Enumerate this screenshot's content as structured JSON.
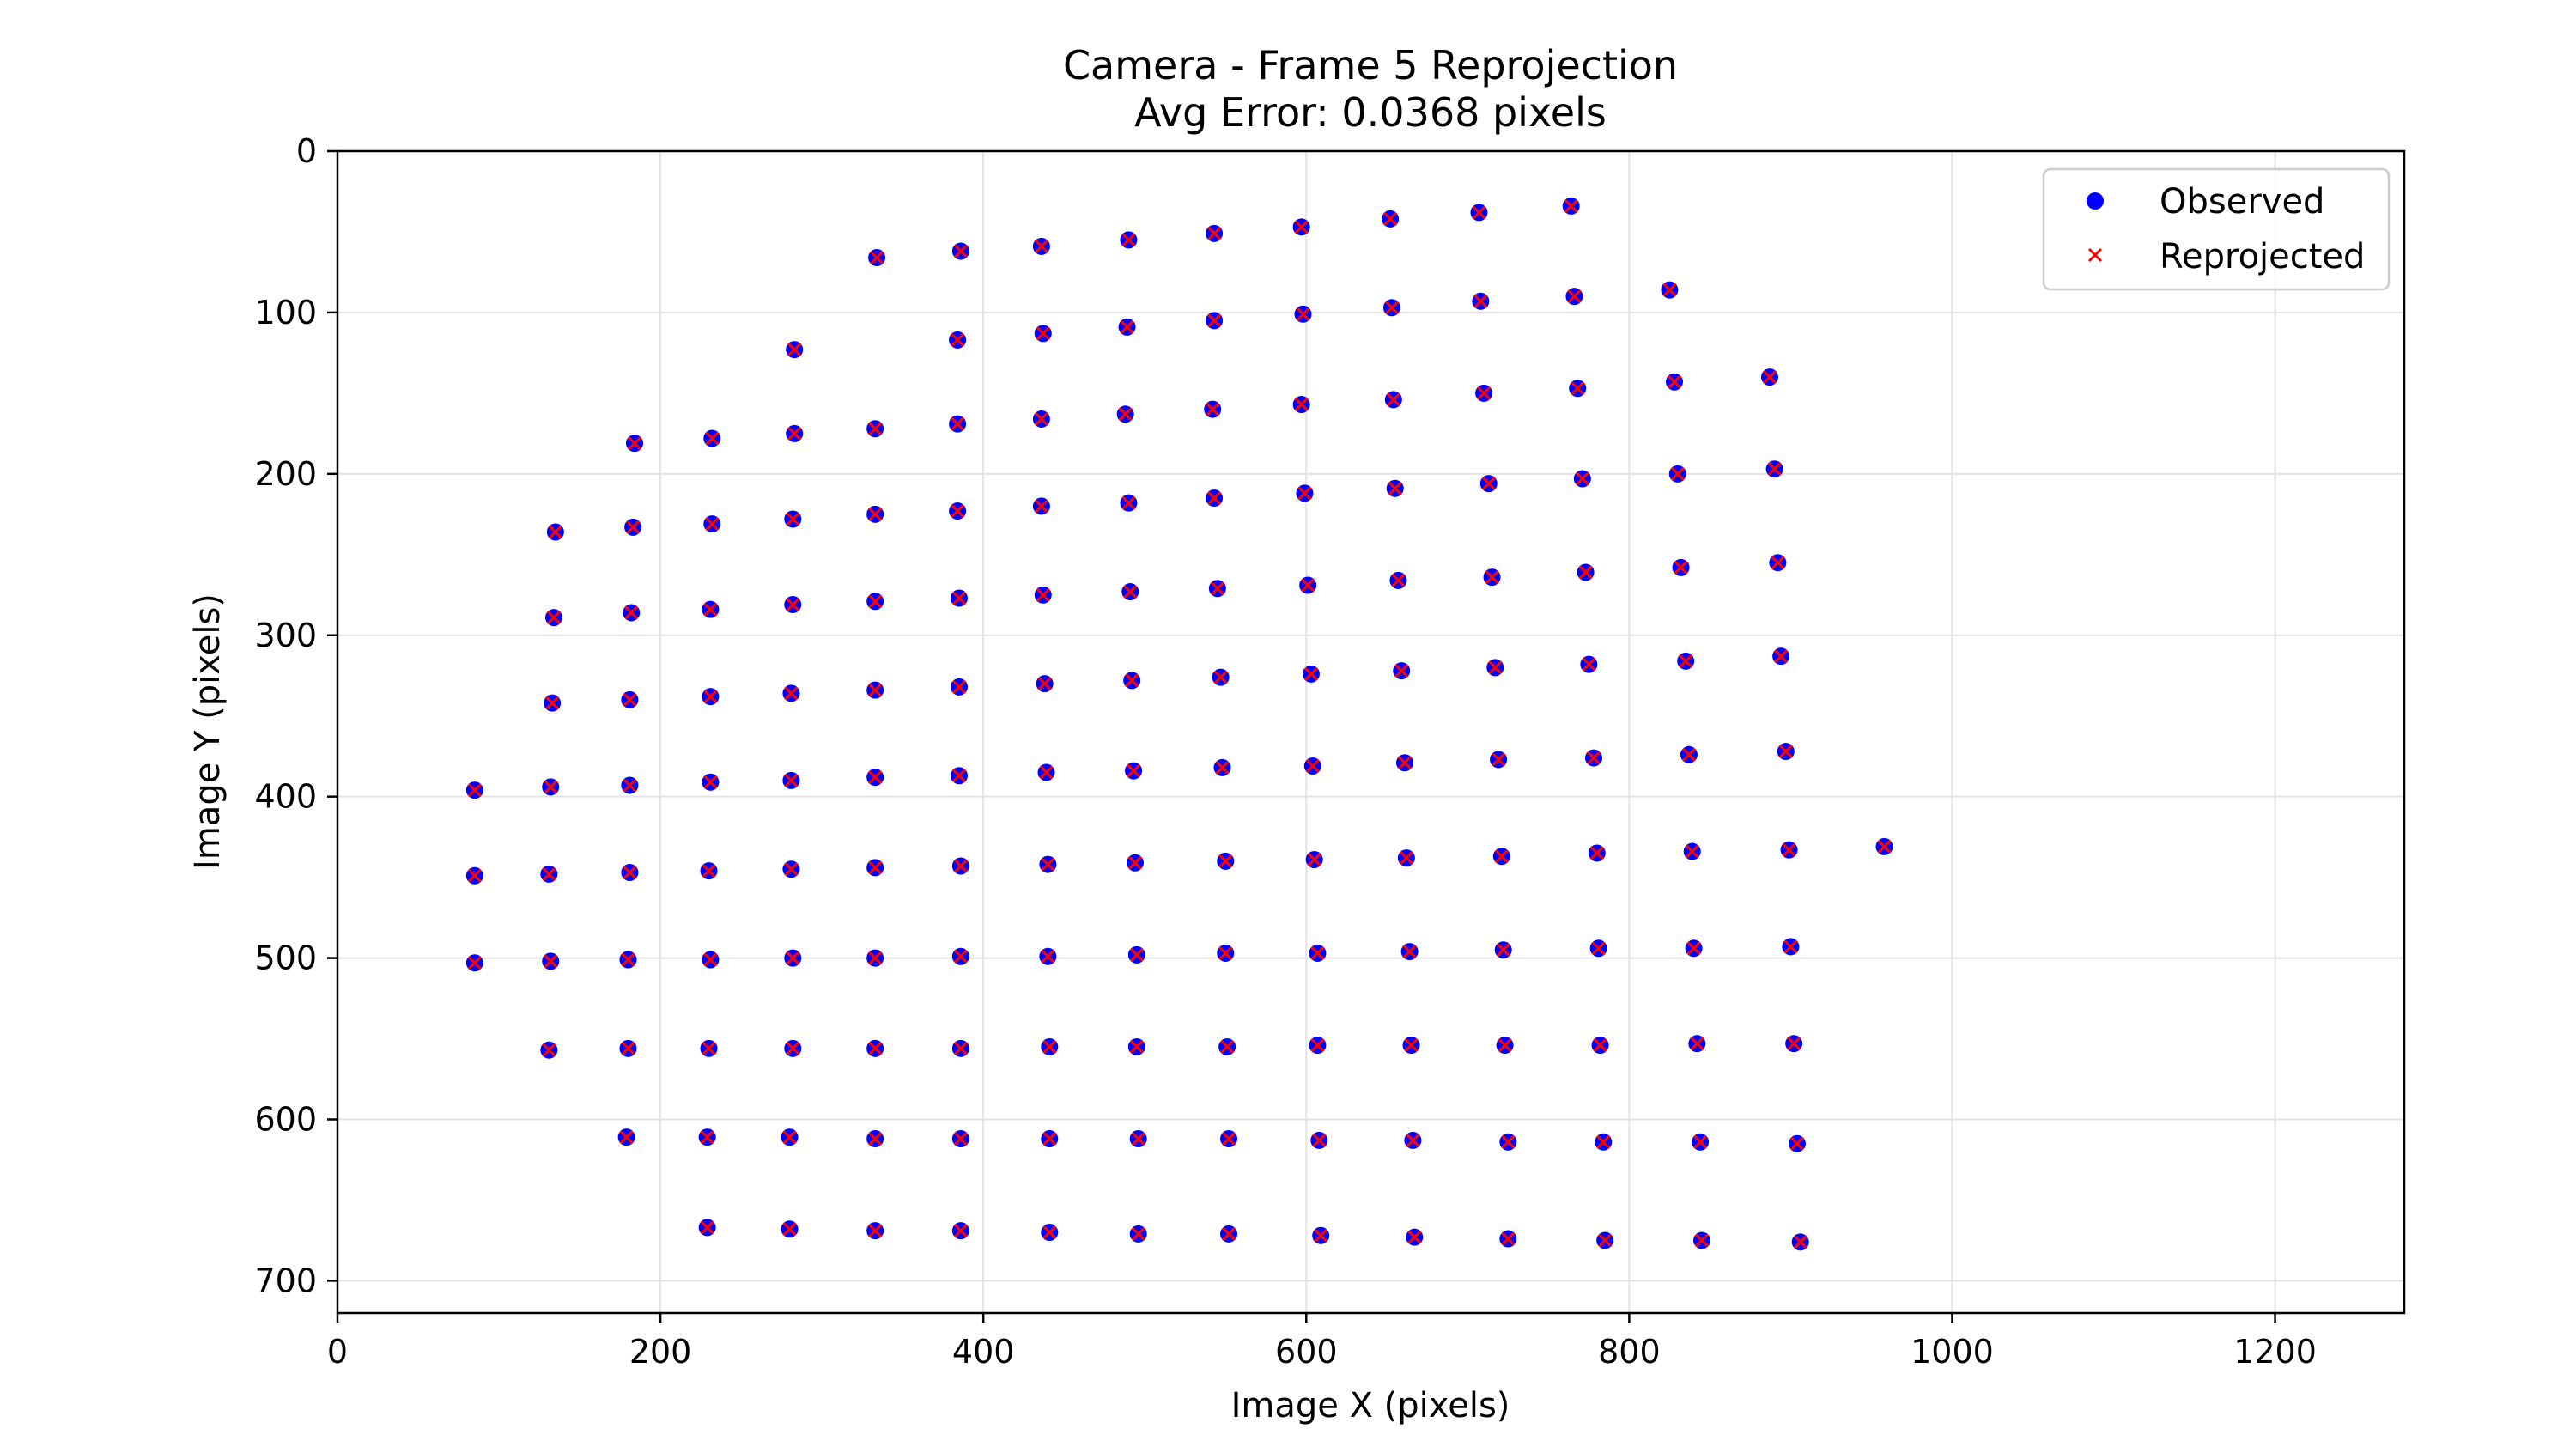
{
  "chart_data": {
    "type": "scatter",
    "title": "Camera - Frame 5 Reprojection",
    "subtitle": "Avg Error: 0.0368 pixels",
    "xlabel": "Image X (pixels)",
    "ylabel": "Image Y (pixels)",
    "xlim": [
      0,
      1280
    ],
    "ylim": [
      720,
      0
    ],
    "y_inverted": true,
    "xticks": [
      0,
      200,
      400,
      600,
      800,
      1000,
      1200
    ],
    "yticks": [
      0,
      100,
      200,
      300,
      400,
      500,
      600,
      700
    ],
    "grid": true,
    "legend_position": "top-right",
    "series": [
      {
        "name": "Observed",
        "marker": "circle",
        "color": "#0000ff"
      },
      {
        "name": "Reprojected",
        "marker": "x",
        "color": "#ff0000"
      }
    ],
    "rows": [
      [
        [
          334,
          66
        ],
        [
          386,
          62
        ],
        [
          436,
          59
        ],
        [
          490,
          55
        ],
        [
          543,
          51
        ],
        [
          597,
          47
        ],
        [
          652,
          42
        ],
        [
          707,
          38
        ],
        [
          764,
          34
        ]
      ],
      [
        [
          283,
          123
        ],
        [
          384,
          117
        ],
        [
          437,
          113
        ],
        [
          489,
          109
        ],
        [
          543,
          105
        ],
        [
          598,
          101
        ],
        [
          653,
          97
        ],
        [
          708,
          93
        ],
        [
          766,
          90
        ],
        [
          825,
          86
        ]
      ],
      [
        [
          184,
          181
        ],
        [
          232,
          178
        ],
        [
          283,
          175
        ],
        [
          333,
          172
        ],
        [
          384,
          169
        ],
        [
          436,
          166
        ],
        [
          488,
          163
        ],
        [
          542,
          160
        ],
        [
          597,
          157
        ],
        [
          654,
          154
        ],
        [
          710,
          150
        ],
        [
          768,
          147
        ],
        [
          828,
          143
        ],
        [
          887,
          140
        ]
      ],
      [
        [
          135,
          236
        ],
        [
          183,
          233
        ],
        [
          232,
          231
        ],
        [
          282,
          228
        ],
        [
          333,
          225
        ],
        [
          384,
          223
        ],
        [
          436,
          220
        ],
        [
          490,
          218
        ],
        [
          543,
          215
        ],
        [
          599,
          212
        ],
        [
          655,
          209
        ],
        [
          713,
          206
        ],
        [
          771,
          203
        ],
        [
          830,
          200
        ],
        [
          890,
          197
        ]
      ],
      [
        [
          134,
          289
        ],
        [
          182,
          286
        ],
        [
          231,
          284
        ],
        [
          282,
          281
        ],
        [
          333,
          279
        ],
        [
          385,
          277
        ],
        [
          437,
          275
        ],
        [
          491,
          273
        ],
        [
          545,
          271
        ],
        [
          601,
          269
        ],
        [
          657,
          266
        ],
        [
          715,
          264
        ],
        [
          773,
          261
        ],
        [
          832,
          258
        ],
        [
          892,
          255
        ]
      ],
      [
        [
          133,
          342
        ],
        [
          181,
          340
        ],
        [
          231,
          338
        ],
        [
          281,
          336
        ],
        [
          333,
          334
        ],
        [
          385,
          332
        ],
        [
          438,
          330
        ],
        [
          492,
          328
        ],
        [
          547,
          326
        ],
        [
          603,
          324
        ],
        [
          659,
          322
        ],
        [
          717,
          320
        ],
        [
          775,
          318
        ],
        [
          835,
          316
        ],
        [
          894,
          313
        ]
      ],
      [
        [
          85,
          396
        ],
        [
          132,
          394
        ],
        [
          181,
          393
        ],
        [
          231,
          391
        ],
        [
          281,
          390
        ],
        [
          333,
          388
        ],
        [
          385,
          387
        ],
        [
          439,
          385
        ],
        [
          493,
          384
        ],
        [
          548,
          382
        ],
        [
          604,
          381
        ],
        [
          661,
          379
        ],
        [
          719,
          377
        ],
        [
          778,
          376
        ],
        [
          837,
          374
        ],
        [
          897,
          372
        ]
      ],
      [
        [
          85,
          449
        ],
        [
          131,
          448
        ],
        [
          181,
          447
        ],
        [
          230,
          446
        ],
        [
          281,
          445
        ],
        [
          333,
          444
        ],
        [
          386,
          443
        ],
        [
          440,
          442
        ],
        [
          494,
          441
        ],
        [
          550,
          440
        ],
        [
          605,
          439
        ],
        [
          662,
          438
        ],
        [
          721,
          437
        ],
        [
          780,
          435
        ],
        [
          839,
          434
        ],
        [
          899,
          433
        ],
        [
          958,
          431
        ]
      ],
      [
        [
          85,
          503
        ],
        [
          132,
          502
        ],
        [
          180,
          501
        ],
        [
          231,
          501
        ],
        [
          282,
          500
        ],
        [
          333,
          500
        ],
        [
          386,
          499
        ],
        [
          440,
          499
        ],
        [
          495,
          498
        ],
        [
          550,
          497
        ],
        [
          607,
          497
        ],
        [
          664,
          496
        ],
        [
          722,
          495
        ],
        [
          781,
          494
        ],
        [
          840,
          494
        ],
        [
          900,
          493
        ]
      ],
      [
        [
          131,
          557
        ],
        [
          180,
          556
        ],
        [
          230,
          556
        ],
        [
          282,
          556
        ],
        [
          333,
          556
        ],
        [
          386,
          556
        ],
        [
          441,
          555
        ],
        [
          495,
          555
        ],
        [
          551,
          555
        ],
        [
          607,
          554
        ],
        [
          665,
          554
        ],
        [
          723,
          554
        ],
        [
          782,
          554
        ],
        [
          842,
          553
        ],
        [
          902,
          553
        ]
      ],
      [
        [
          179,
          611
        ],
        [
          229,
          611
        ],
        [
          280,
          611
        ],
        [
          333,
          612
        ],
        [
          386,
          612
        ],
        [
          441,
          612
        ],
        [
          496,
          612
        ],
        [
          552,
          612
        ],
        [
          608,
          613
        ],
        [
          666,
          613
        ],
        [
          725,
          614
        ],
        [
          784,
          614
        ],
        [
          844,
          614
        ],
        [
          904,
          615
        ]
      ],
      [
        [
          229,
          667
        ],
        [
          280,
          668
        ],
        [
          333,
          669
        ],
        [
          386,
          669
        ],
        [
          441,
          670
        ],
        [
          496,
          671
        ],
        [
          552,
          671
        ],
        [
          609,
          672
        ],
        [
          667,
          673
        ],
        [
          725,
          674
        ],
        [
          785,
          675
        ],
        [
          845,
          675
        ],
        [
          906,
          676
        ]
      ]
    ]
  }
}
